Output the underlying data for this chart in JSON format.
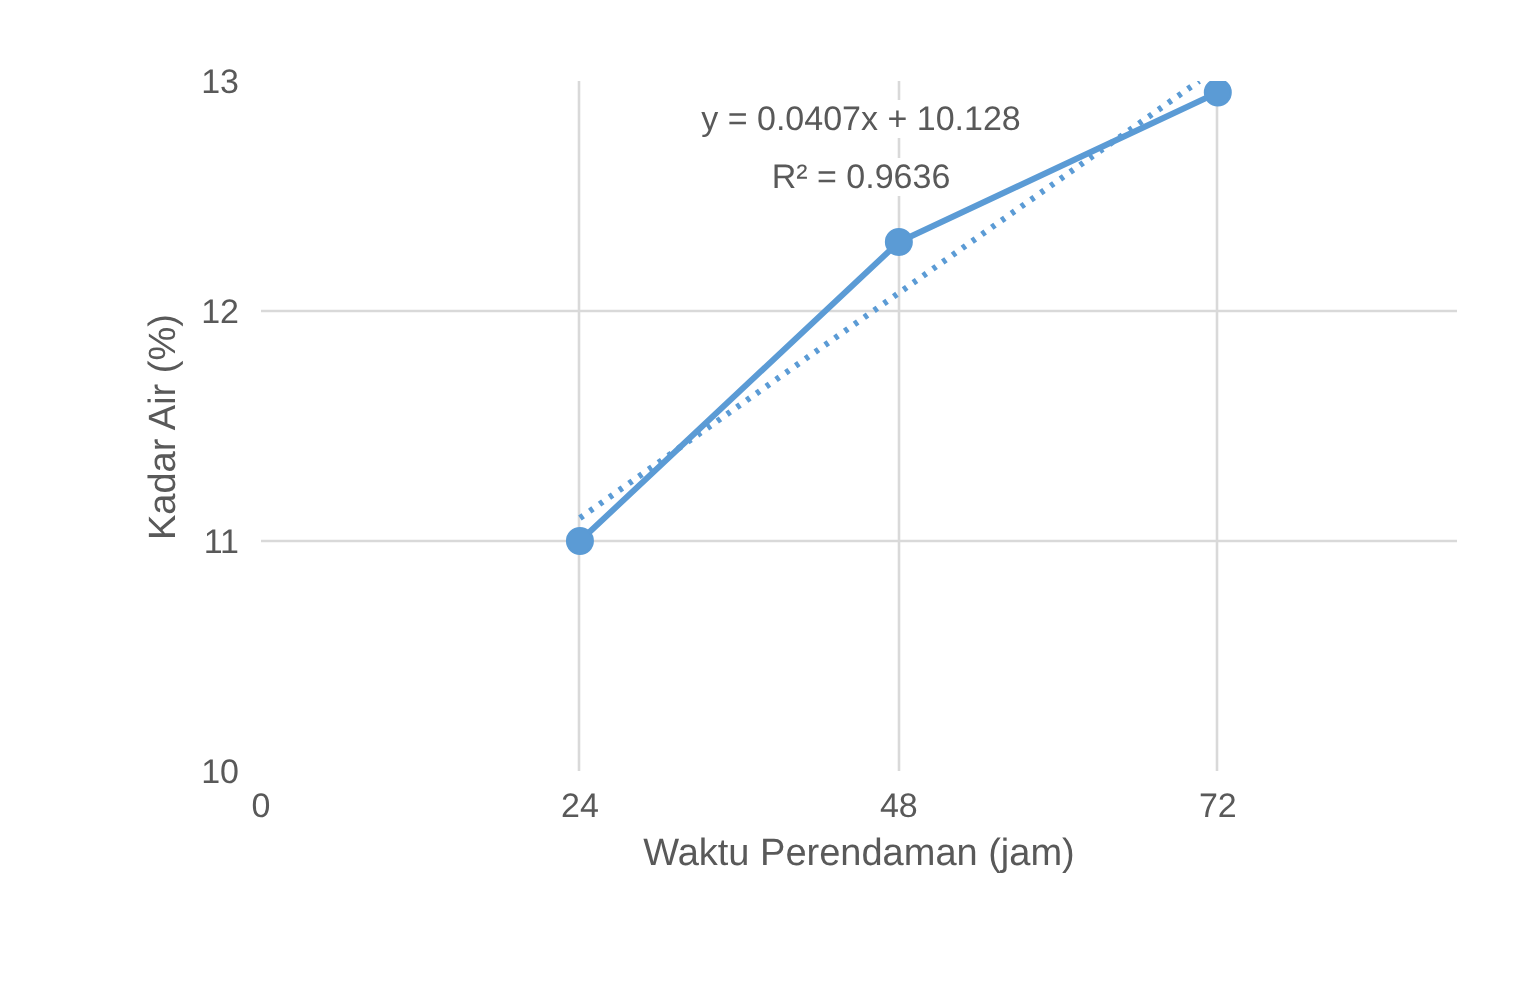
{
  "chart_data": {
    "type": "line",
    "xlabel": "Waktu Perendaman (jam)",
    "ylabel": "Kadar Air (%)",
    "x": [
      24,
      48,
      72
    ],
    "series": [
      {
        "color": "#5b9bd5",
        "values": [
          11,
          12.3,
          12.95
        ],
        "marker": "circle",
        "line_style": "solid"
      },
      {
        "color": "#5b9bd5",
        "x": [
          24,
          70.6
        ],
        "values": [
          11.1,
          13.0
        ],
        "marker": "none",
        "line_style": "dotted"
      }
    ],
    "annotations": [
      "y = 0.0407x + 10.128",
      "R² = 0.9636"
    ],
    "xlim": [
      0,
      90
    ],
    "xticks": [
      0,
      24,
      48,
      72
    ],
    "ylim": [
      10,
      13
    ],
    "yticks": [
      10,
      11,
      12,
      13
    ],
    "grid": true
  }
}
